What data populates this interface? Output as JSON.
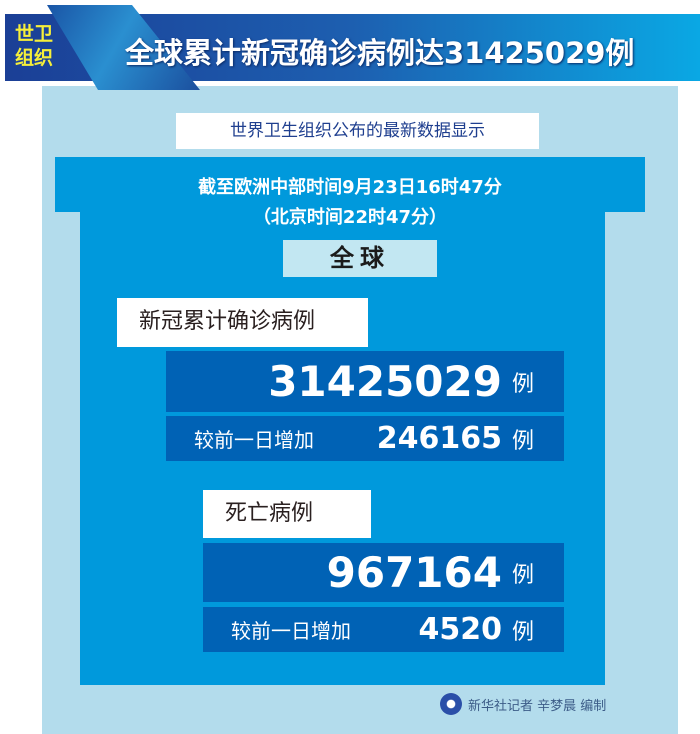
{
  "header": {
    "tag_line1": "世卫",
    "tag_line2": "组织",
    "title": "全球累计新冠确诊病例达31425029例"
  },
  "subtitle": "世界卫生组织公布的最新数据显示",
  "date_line1": "截至欧洲中部时间9月23日16时47分",
  "date_line2": "（北京时间22时47分）",
  "region": "全球",
  "confirmed": {
    "label": "新冠累计确诊病例",
    "total": "31425029",
    "unit": "例",
    "increase_label": "较前一日增加",
    "increase": "246165"
  },
  "deaths": {
    "label": "死亡病例",
    "total": "967164",
    "unit": "例",
    "increase_label": "较前一日增加",
    "increase": "4520"
  },
  "credit": "新华社记者 辛梦晨 编制",
  "colors": {
    "banner": "#1d5fb0",
    "panel": "#b3dcec",
    "main": "#0099dc",
    "box": "#0062b5",
    "tag_text": "#f6ef3a"
  }
}
